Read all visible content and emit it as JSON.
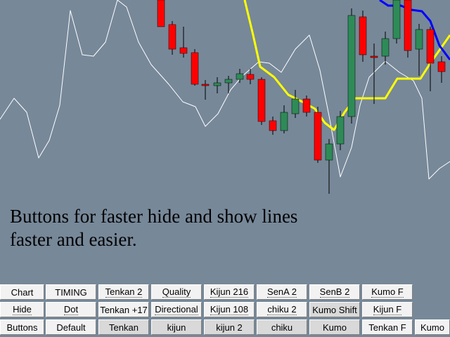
{
  "caption": {
    "line1": "Buttons for faster hide and show lines",
    "line2": "faster and easier."
  },
  "colors": {
    "background": "#778899",
    "bull_candle": "#2e8b57",
    "bear_candle": "#ff0000",
    "wick": "#000000",
    "kijun_line": "#ffff00",
    "chikou_line": "#ffffff",
    "blue_line": "#0000ff",
    "button_face": "#f2f2f2",
    "button_pressed": "#d9d9d9"
  },
  "buttons": {
    "row1": [
      "Chart",
      "TIMING",
      "Tenkan 2",
      "Quality",
      "Kijun 216",
      "SenA 2",
      "SenB 2",
      "Kumo F"
    ],
    "row2": [
      "Hide",
      "Dot",
      "Tenkan +17",
      "Directional",
      "Kijun 108",
      "chiku 2",
      "Kumo Shift",
      "Kijun F"
    ],
    "row3": [
      "Buttons",
      "Default",
      "Tenkan",
      "kijun",
      "kijun 2",
      "chiku",
      "Kumo",
      "Tenkan F",
      "Kumo"
    ]
  }
}
